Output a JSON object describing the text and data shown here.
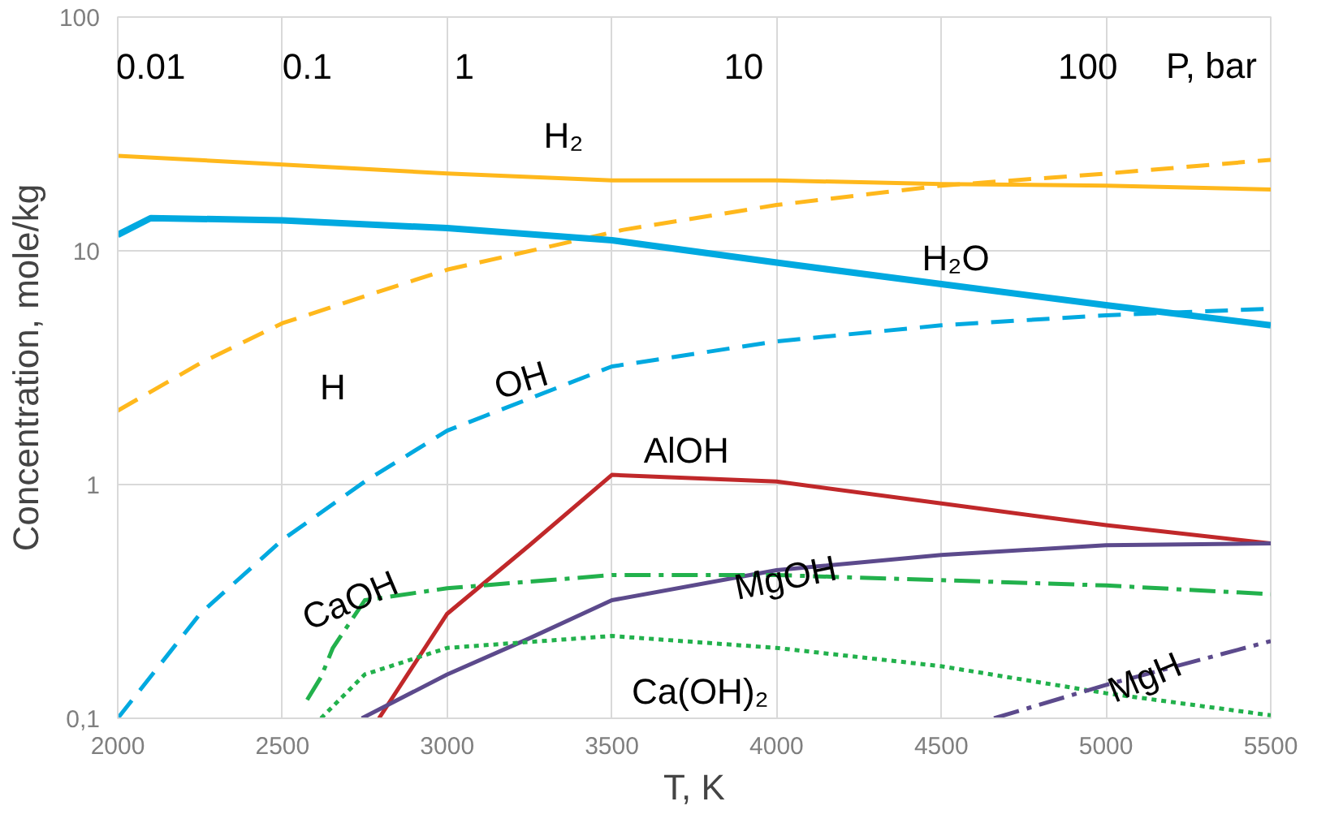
{
  "chart_data": {
    "type": "line",
    "xlabel": "T, K",
    "ylabel": "Concentration, mole/kg",
    "xlim": [
      2000,
      5500
    ],
    "xticks": [
      2000,
      2500,
      3000,
      3500,
      4000,
      4500,
      5000,
      5500
    ],
    "annotations": [
      "0.01",
      "0.1",
      "1",
      "10",
      "100",
      "P, bar"
    ],
    "ylim": [
      0.1,
      100
    ],
    "yticks": [
      {
        "value": 0.1,
        "label": "0,1"
      },
      1,
      10,
      100
    ],
    "log": "y",
    "grid": true,
    "series": [
      {
        "name": "H₂",
        "color": "#ffb81c",
        "line_style": "solid",
        "x": [
          2000,
          2500,
          3000,
          3500,
          4000,
          4500,
          5000,
          5500
        ],
        "values": [
          25.5,
          23.4,
          21.4,
          20,
          20,
          19.3,
          19,
          18.3
        ]
      },
      {
        "name": "H",
        "color": "#ffb81c",
        "line_style": "dashed",
        "x": [
          2000,
          2250,
          2500,
          2750,
          3000,
          3535,
          4000,
          4500,
          5000,
          5500
        ],
        "values": [
          2.07,
          3.3,
          4.9,
          6.4,
          8.3,
          12.3,
          15.7,
          19,
          21.4,
          24.5
        ]
      },
      {
        "name": "H₂O",
        "color": "#00a9e0",
        "line_style": "solid",
        "x": [
          2000,
          2100,
          2500,
          3000,
          3500,
          4000,
          4500,
          5000,
          5500
        ],
        "values": [
          11.7,
          13.8,
          13.5,
          12.5,
          11.1,
          8.9,
          7.2,
          5.85,
          4.8
        ]
      },
      {
        "name": "OH",
        "color": "#00a9e0",
        "line_style": "dashed",
        "x": [
          2000,
          2250,
          2500,
          2750,
          3000,
          3500,
          4000,
          4500,
          5000,
          5500
        ],
        "values": [
          0.1,
          0.28,
          0.58,
          1.03,
          1.7,
          3.2,
          4.1,
          4.8,
          5.3,
          5.65
        ]
      },
      {
        "name": "AlOH",
        "color": "#c0282a",
        "line_style": "solid",
        "x": [
          2793,
          3000,
          3250,
          3500,
          4000,
          4500,
          5000,
          5500
        ],
        "values": [
          0.1,
          0.28,
          0.55,
          1.1,
          1.03,
          0.83,
          0.67,
          0.56
        ]
      },
      {
        "name": "MgOH",
        "color": "#5c4a8c",
        "line_style": "solid",
        "x": [
          2741,
          3000,
          3250,
          3500,
          4000,
          4500,
          5000,
          5500
        ],
        "values": [
          0.1,
          0.154,
          0.22,
          0.32,
          0.43,
          0.5,
          0.55,
          0.56
        ]
      },
      {
        "name": "CaOH",
        "color": "#22b14c",
        "line_style": "dashdot",
        "x": [
          2575,
          2617,
          2653,
          2750,
          3000,
          3500,
          4000,
          4500,
          5000,
          5500
        ],
        "values": [
          0.12,
          0.15,
          0.2,
          0.32,
          0.36,
          0.41,
          0.41,
          0.39,
          0.37,
          0.34
        ]
      },
      {
        "name": "Ca(OH)₂",
        "color": "#22b14c",
        "line_style": "dotted",
        "x": [
          2617,
          2750,
          3000,
          3500,
          4000,
          4500,
          5000,
          5500
        ],
        "values": [
          0.1,
          0.154,
          0.2,
          0.225,
          0.2,
          0.167,
          0.128,
          0.103
        ]
      },
      {
        "name": "MgH",
        "color": "#5c4a8c",
        "line_style": "dashdot",
        "x": [
          4660,
          5000,
          5500
        ],
        "values": [
          0.1,
          0.139,
          0.214
        ]
      }
    ]
  }
}
